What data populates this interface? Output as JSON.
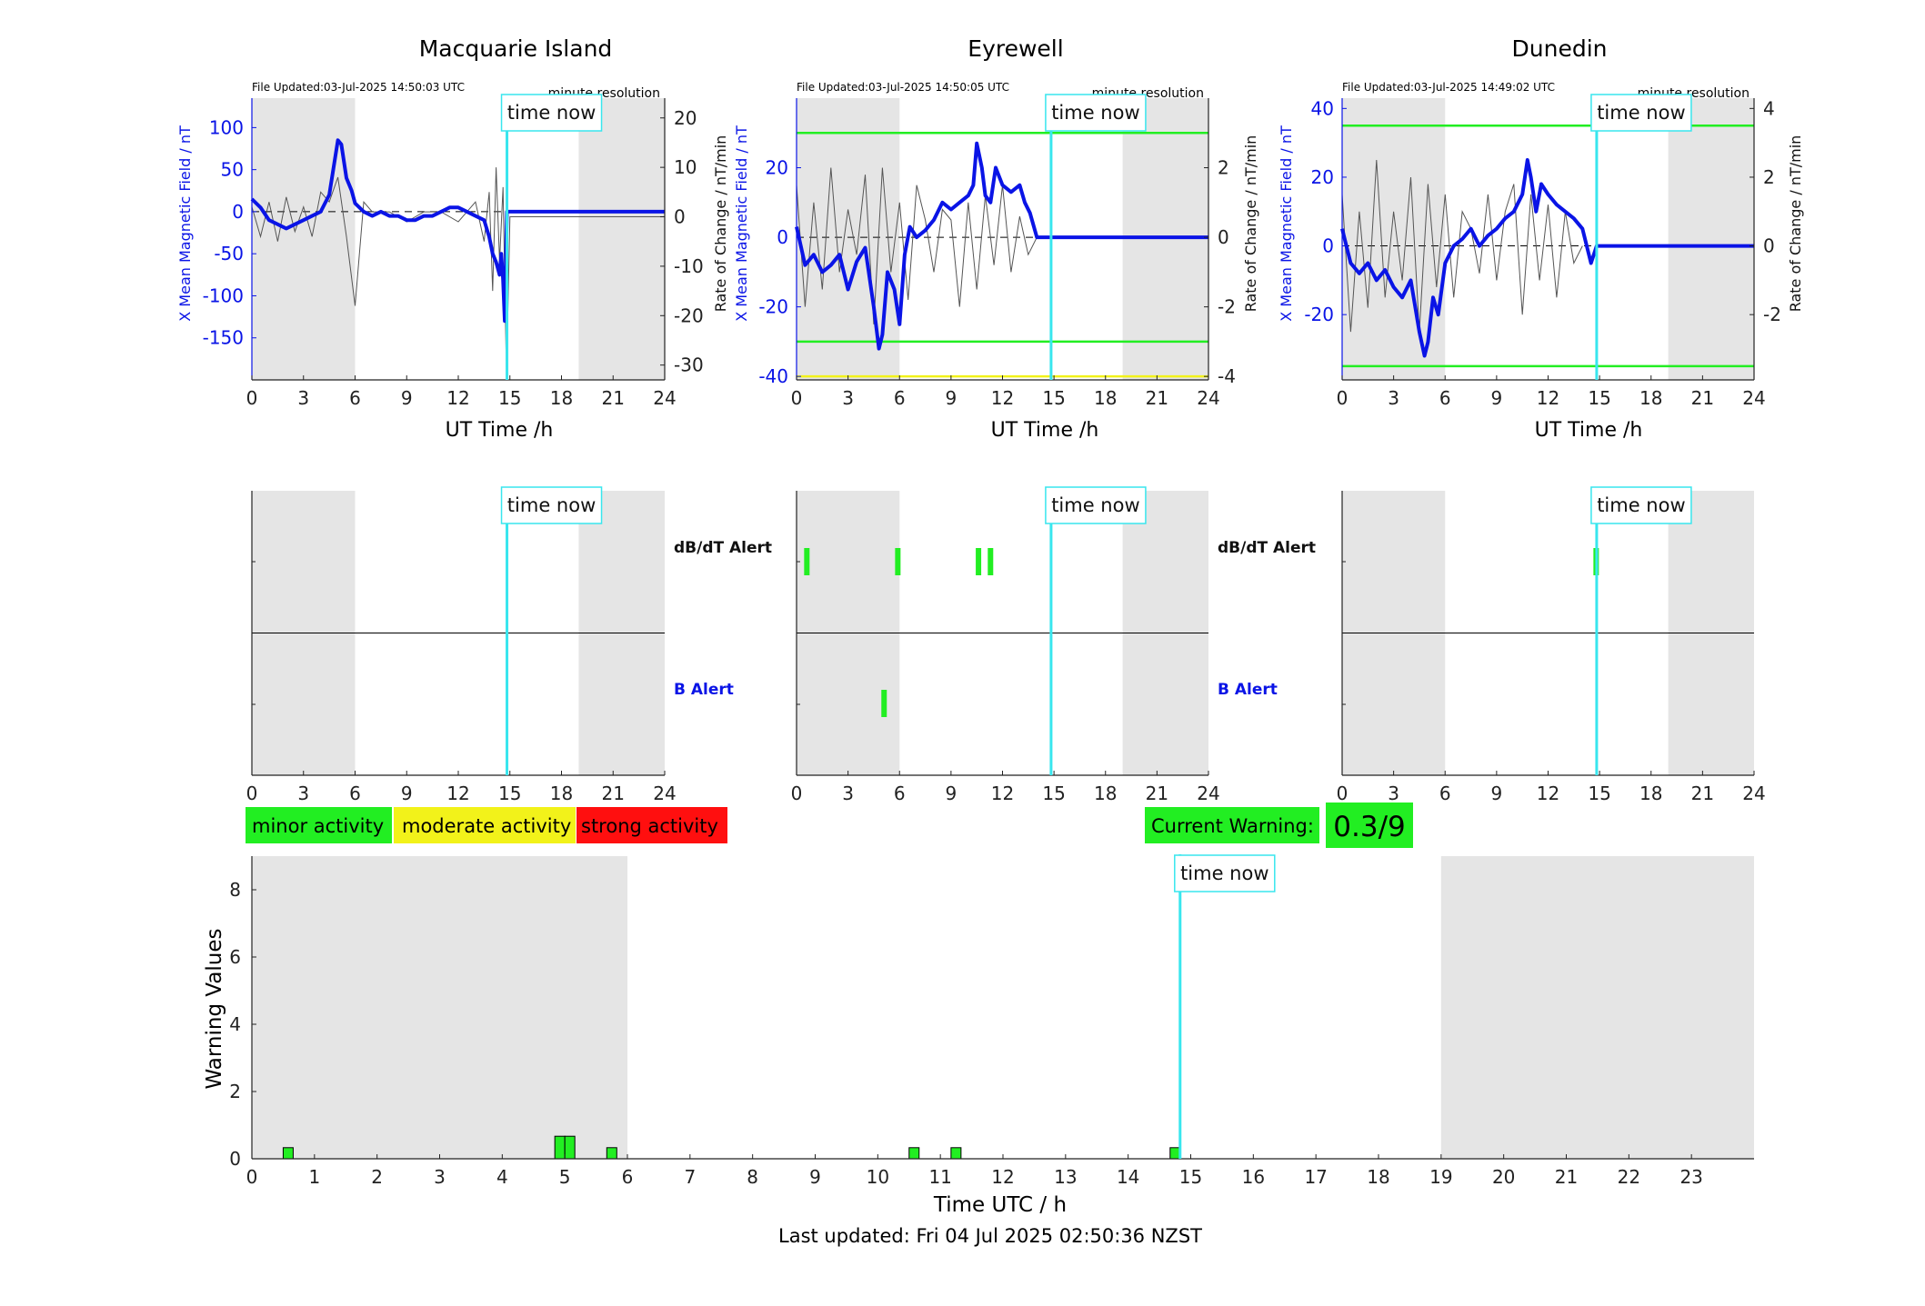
{
  "stations": [
    {
      "name": "Macquarie Island",
      "file_updated": "File Updated:03-Jul-2025 14:50:03 UTC",
      "resolution": "minute resolution"
    },
    {
      "name": "Eyrewell",
      "file_updated": "File Updated:03-Jul-2025 14:50:05 UTC",
      "resolution": "minute resolution"
    },
    {
      "name": "Dunedin",
      "file_updated": "File Updated:03-Jul-2025 14:49:02 UTC",
      "resolution": "minute resolution"
    }
  ],
  "labels": {
    "time_now": "time now",
    "ut_time": "UT Time /h",
    "left_axis": "X Mean Magnetic Field / nT",
    "right_axis": "Rate of Change / nT/min",
    "dbdt_alert": "dB/dT Alert",
    "b_alert": "B Alert",
    "minor": "minor activity",
    "moderate": "moderate activity",
    "strong": "strong activity",
    "current_warning_label": "Current Warning:",
    "current_warning_value": "0.3/9",
    "warning_ylabel": "Warning Values",
    "warning_xlabel": "Time UTC / h",
    "last_updated": "Last updated: Fri 04 Jul 2025 02:50:36 NZST"
  },
  "colors": {
    "field": "#0a14e6",
    "rate": "#555555",
    "alert_green": "#22ee22",
    "threshold_yellow": "#f2f21a",
    "strong_red": "#ff0f0f",
    "time_now": "#38e6ee",
    "night_shade": "#e5e5e5"
  },
  "chart_data": [
    {
      "type": "line",
      "title": "Macquarie Island",
      "xlabel": "UT Time /h",
      "ylabel": "X Mean Magnetic Field / nT",
      "y2label": "Rate of Change / nT/min",
      "xlim": [
        0,
        24
      ],
      "ylim": [
        -200,
        135
      ],
      "y2lim": [
        -33,
        24
      ],
      "xticks": [
        0,
        3,
        6,
        9,
        12,
        15,
        18,
        21,
        24
      ],
      "yticks": [
        100,
        50,
        0,
        -50,
        -100,
        -150
      ],
      "y2ticks": [
        20,
        10,
        0,
        -10,
        -20,
        -30
      ],
      "night_shading": [
        [
          0,
          6
        ],
        [
          19,
          24
        ]
      ],
      "time_now": 14.83,
      "thresholds": [],
      "series": [
        {
          "name": "X Mean Magnetic Field",
          "axis": "left",
          "x": [
            0,
            0.5,
            1,
            1.5,
            2,
            2.5,
            3,
            3.5,
            4,
            4.5,
            5,
            5.2,
            5.5,
            5.8,
            6,
            6.5,
            7,
            7.5,
            8,
            8.5,
            9,
            9.5,
            10,
            10.5,
            11,
            11.5,
            12,
            12.5,
            13,
            13.5,
            13.8,
            14,
            14.2,
            14.4,
            14.5,
            14.6,
            14.7,
            14.83,
            15,
            24
          ],
          "y": [
            15,
            5,
            -10,
            -15,
            -20,
            -15,
            -10,
            -5,
            0,
            20,
            85,
            80,
            40,
            25,
            10,
            0,
            -5,
            0,
            -5,
            -5,
            -10,
            -10,
            -5,
            -5,
            0,
            5,
            5,
            0,
            -5,
            -10,
            -30,
            -50,
            -60,
            -75,
            -50,
            -80,
            -130,
            0,
            0,
            0
          ]
        },
        {
          "name": "Rate of Change",
          "axis": "right",
          "x": [
            0,
            0.5,
            1,
            1.5,
            2,
            2.5,
            3,
            3.5,
            4,
            4.5,
            5,
            5.5,
            6,
            6.5,
            7,
            8,
            9,
            10,
            11,
            12,
            12.5,
            13,
            13.5,
            13.8,
            14,
            14.2,
            14.4,
            14.6,
            14.8,
            15,
            24
          ],
          "y": [
            2,
            -4,
            3,
            -5,
            4,
            -3,
            2,
            -4,
            5,
            3,
            8,
            -4,
            -18,
            3,
            1,
            1,
            -1,
            1,
            1,
            -1,
            1,
            3,
            -5,
            5,
            -15,
            10,
            -9,
            6,
            -32,
            0,
            0
          ]
        }
      ]
    },
    {
      "type": "line",
      "title": "Eyrewell",
      "xlabel": "UT Time /h",
      "ylabel": "X Mean Magnetic Field / nT",
      "y2label": "Rate of Change / nT/min",
      "xlim": [
        0,
        24
      ],
      "ylim": [
        -41,
        40
      ],
      "y2lim": [
        -4.1,
        4.0
      ],
      "xticks": [
        0,
        3,
        6,
        9,
        12,
        15,
        18,
        21,
        24
      ],
      "yticks": [
        20,
        0,
        -20,
        -40
      ],
      "y2ticks": [
        2,
        0,
        -2,
        -4
      ],
      "night_shading": [
        [
          0,
          6
        ],
        [
          19,
          24
        ]
      ],
      "time_now": 14.83,
      "thresholds": [
        {
          "value": 30,
          "color": "green"
        },
        {
          "value": -30,
          "color": "green"
        },
        {
          "value": -40,
          "color": "yellow"
        }
      ],
      "series": [
        {
          "name": "X Mean Magnetic Field",
          "axis": "left",
          "x": [
            0,
            0.5,
            1,
            1.5,
            2,
            2.5,
            3,
            3.5,
            4,
            4.5,
            4.8,
            5,
            5.3,
            5.7,
            6,
            6.3,
            6.6,
            7,
            7.5,
            8,
            8.5,
            9,
            9.5,
            10,
            10.3,
            10.5,
            10.8,
            11,
            11.3,
            11.6,
            12,
            12.5,
            13,
            13.3,
            13.6,
            14,
            14.83,
            24
          ],
          "y": [
            3,
            -8,
            -5,
            -10,
            -8,
            -5,
            -15,
            -7,
            -3,
            -20,
            -32,
            -28,
            -10,
            -15,
            -25,
            -5,
            3,
            0,
            2,
            5,
            10,
            8,
            10,
            12,
            15,
            27,
            20,
            12,
            10,
            20,
            15,
            13,
            15,
            10,
            7,
            0,
            0,
            0
          ]
        },
        {
          "name": "Rate of Change",
          "axis": "right",
          "x": [
            0,
            0.5,
            1,
            1.5,
            2,
            2.5,
            3,
            3.5,
            4,
            4.5,
            5,
            5.5,
            6,
            6.5,
            7,
            7.5,
            8,
            8.5,
            9,
            9.5,
            10,
            10.5,
            11,
            11.5,
            12,
            12.5,
            13,
            13.5,
            14
          ],
          "y": [
            1.5,
            -2,
            1,
            -1.5,
            2,
            -1,
            0.8,
            -0.5,
            1.8,
            -2.5,
            2,
            -1,
            1,
            -1.8,
            1.5,
            0.5,
            -1,
            0.8,
            0.5,
            -2,
            1,
            -1.5,
            1.2,
            -0.8,
            1.5,
            -1,
            0.6,
            -0.5,
            0
          ]
        }
      ]
    },
    {
      "type": "line",
      "title": "Dunedin",
      "xlabel": "UT Time /h",
      "ylabel": "X Mean Magnetic Field / nT",
      "y2label": "Rate of Change / nT/min",
      "xlim": [
        0,
        24
      ],
      "ylim": [
        -39,
        43
      ],
      "y2lim": [
        -3.9,
        4.3
      ],
      "xticks": [
        0,
        3,
        6,
        9,
        12,
        15,
        18,
        21,
        24
      ],
      "yticks": [
        40,
        20,
        0,
        -20
      ],
      "y2ticks": [
        4,
        2,
        0,
        -2
      ],
      "night_shading": [
        [
          0,
          6
        ],
        [
          19,
          24
        ]
      ],
      "time_now": 14.83,
      "thresholds": [
        {
          "value": 35,
          "color": "green"
        },
        {
          "value": -35,
          "color": "green"
        }
      ],
      "series": [
        {
          "name": "X Mean Magnetic Field",
          "axis": "left",
          "x": [
            0,
            0.5,
            1,
            1.5,
            2,
            2.5,
            3,
            3.5,
            4,
            4.5,
            4.8,
            5,
            5.3,
            5.6,
            6,
            6.5,
            7,
            7.5,
            8,
            8.5,
            9,
            9.5,
            10,
            10.5,
            10.8,
            11,
            11.3,
            11.6,
            12,
            12.5,
            13,
            13.5,
            14,
            14.5,
            14.83,
            24
          ],
          "y": [
            5,
            -5,
            -8,
            -5,
            -10,
            -7,
            -12,
            -15,
            -10,
            -25,
            -32,
            -28,
            -15,
            -20,
            -5,
            0,
            2,
            5,
            0,
            3,
            5,
            8,
            10,
            15,
            25,
            20,
            10,
            18,
            15,
            12,
            10,
            8,
            5,
            -5,
            0,
            0
          ]
        },
        {
          "name": "Rate of Change",
          "axis": "right",
          "x": [
            0,
            0.5,
            1,
            1.5,
            2,
            2.5,
            3,
            3.5,
            4,
            4.5,
            5,
            5.5,
            6,
            6.5,
            7,
            7.5,
            8,
            8.5,
            9,
            9.5,
            10,
            10.5,
            11,
            11.5,
            12,
            12.5,
            13,
            13.5,
            14
          ],
          "y": [
            1.5,
            -2.5,
            1,
            -1.8,
            2.5,
            -1.5,
            1,
            -1,
            2,
            -2.5,
            1.8,
            -1.2,
            1.5,
            -1.5,
            1,
            0.5,
            -0.8,
            1.5,
            -1,
            1,
            1.8,
            -2,
            1.5,
            -1,
            1.2,
            -1.5,
            1,
            -0.5,
            0
          ]
        }
      ]
    },
    {
      "type": "bar",
      "title": "",
      "xlabel": "UT Time /h",
      "ylabel": "",
      "xlim": [
        0,
        24
      ],
      "xticks": [
        0,
        3,
        6,
        9,
        12,
        15,
        18,
        21,
        24
      ],
      "rows": [
        "dB/dT Alert",
        "B Alert"
      ],
      "night_shading": [
        [
          0,
          6
        ],
        [
          19,
          24
        ]
      ],
      "time_now": 14.83,
      "alerts": []
    },
    {
      "type": "bar",
      "title": "",
      "xlabel": "",
      "ylabel": "",
      "xlim": [
        0,
        24
      ],
      "xticks": [
        0,
        3,
        6,
        9,
        12,
        15,
        18,
        21,
        24
      ],
      "rows": [
        "dB/dT Alert",
        "B Alert"
      ],
      "night_shading": [
        [
          0,
          6
        ],
        [
          19,
          24
        ]
      ],
      "time_now": 14.83,
      "alerts": [
        {
          "row": "dB/dT Alert",
          "x": 0.6
        },
        {
          "row": "dB/dT Alert",
          "x": 5.9
        },
        {
          "row": "dB/dT Alert",
          "x": 10.6
        },
        {
          "row": "dB/dT Alert",
          "x": 11.3
        },
        {
          "row": "B Alert",
          "x": 5.1
        }
      ]
    },
    {
      "type": "bar",
      "title": "",
      "xlabel": "",
      "ylabel": "",
      "xlim": [
        0,
        24
      ],
      "xticks": [
        0,
        3,
        6,
        9,
        12,
        15,
        18,
        21,
        24
      ],
      "rows": [
        "dB/dT Alert",
        "B Alert"
      ],
      "night_shading": [
        [
          0,
          6
        ],
        [
          19,
          24
        ]
      ],
      "time_now": 14.83,
      "alerts": [
        {
          "row": "dB/dT Alert",
          "x": 14.8
        }
      ]
    },
    {
      "type": "bar",
      "title": "",
      "xlabel": "Time UTC / h",
      "ylabel": "Warning Values",
      "xlim": [
        0,
        24
      ],
      "ylim": [
        0,
        9
      ],
      "xticks": [
        0,
        1,
        2,
        3,
        4,
        5,
        6,
        7,
        8,
        9,
        10,
        11,
        12,
        13,
        14,
        15,
        16,
        17,
        18,
        19,
        20,
        21,
        22,
        23
      ],
      "yticks": [
        0,
        2,
        4,
        6,
        8
      ],
      "night_shading": [
        [
          0,
          6
        ],
        [
          19,
          24
        ]
      ],
      "time_now": 14.83,
      "bars": [
        {
          "x": 0.58,
          "value": 0.33
        },
        {
          "x": 4.92,
          "value": 0.67
        },
        {
          "x": 5.08,
          "value": 0.67
        },
        {
          "x": 5.75,
          "value": 0.33
        },
        {
          "x": 10.58,
          "value": 0.33
        },
        {
          "x": 11.25,
          "value": 0.33
        },
        {
          "x": 14.75,
          "value": 0.33
        }
      ]
    }
  ]
}
